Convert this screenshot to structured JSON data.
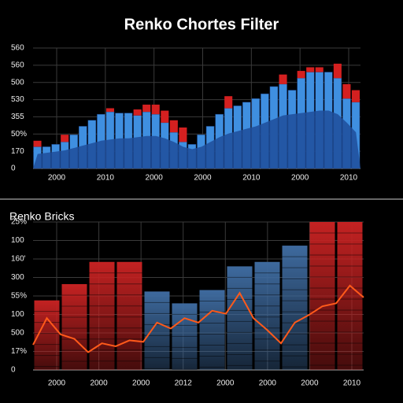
{
  "chart_data": [
    {
      "type": "bar",
      "title": "Renko Chortes Filter",
      "y_labels": [
        "560",
        "560",
        "500",
        "530",
        "355",
        "50%",
        "170",
        "0"
      ],
      "x_labels": [
        "2000",
        "2010",
        "2000",
        "2000",
        "2010",
        "2000",
        "2010"
      ],
      "ylim": [
        0,
        100
      ],
      "series": [
        {
          "color": "#1f4e9a",
          "values": [
            12,
            13,
            14,
            15,
            17,
            19,
            21,
            23,
            24,
            25,
            25,
            26,
            27,
            27,
            25,
            22,
            18,
            16,
            18,
            22,
            26,
            29,
            31,
            33,
            35,
            38,
            41,
            44,
            45,
            46,
            47,
            48,
            48,
            45,
            38,
            30
          ]
        },
        {
          "color": "#3f8fe0",
          "values": [
            18,
            18,
            20,
            22,
            28,
            35,
            40,
            45,
            47,
            46,
            46,
            44,
            47,
            45,
            38,
            30,
            22,
            20,
            28,
            35,
            45,
            50,
            52,
            55,
            58,
            62,
            68,
            70,
            65,
            75,
            80,
            80,
            80,
            75,
            58,
            55
          ]
        },
        {
          "color": "#d42020",
          "values": [
            5,
            0,
            0,
            6,
            0,
            0,
            0,
            0,
            3,
            0,
            0,
            5,
            6,
            8,
            10,
            10,
            12,
            0,
            0,
            0,
            0,
            10,
            0,
            0,
            0,
            0,
            0,
            8,
            0,
            6,
            4,
            4,
            0,
            12,
            12,
            10
          ]
        }
      ],
      "grid": true
    },
    {
      "type": "renko",
      "title": "Renko Bricks",
      "y_labels": [
        "25%",
        "100",
        "160'",
        "300",
        "55%",
        "100",
        "500",
        "17%",
        "0"
      ],
      "x_labels": [
        "2000",
        "2000",
        "2000",
        "2012",
        "2000",
        "2000",
        "2000",
        "2010"
      ],
      "ylim": [
        0,
        100
      ],
      "values": [
        47,
        58,
        73,
        73,
        53,
        45,
        54,
        70,
        73,
        84,
        100,
        100
      ],
      "colors": [
        "#c42222",
        "#c42222",
        "#c42222",
        "#c42222",
        "#3e6a9e",
        "#3e6a9e",
        "#3e6a9e",
        "#3e6a9e",
        "#3e6a9e",
        "#3e6a9e",
        "#c42222",
        "#c42222"
      ],
      "line": {
        "color": "#ff5a1a",
        "values": [
          17,
          35,
          24,
          21,
          12,
          18,
          16,
          20,
          19,
          32,
          28,
          35,
          32,
          40,
          38,
          52,
          35,
          27,
          18,
          32,
          37,
          43,
          45,
          57,
          49
        ]
      },
      "grid": true
    }
  ]
}
